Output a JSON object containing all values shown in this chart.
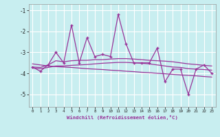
{
  "x": [
    0,
    1,
    2,
    3,
    4,
    5,
    6,
    7,
    8,
    9,
    10,
    11,
    12,
    13,
    14,
    15,
    16,
    17,
    18,
    19,
    20,
    21,
    22,
    23
  ],
  "y_main": [
    -3.7,
    -3.9,
    -3.6,
    -3.0,
    -3.5,
    -1.7,
    -3.5,
    -2.3,
    -3.2,
    -3.1,
    -3.2,
    -1.2,
    -2.6,
    -3.5,
    -3.5,
    -3.5,
    -2.8,
    -4.4,
    -3.8,
    -3.8,
    -5.0,
    -3.8,
    -3.6,
    -4.0
  ],
  "y_smooth1": [
    -3.7,
    -3.72,
    -3.6,
    -3.4,
    -3.45,
    -3.4,
    -3.38,
    -3.38,
    -3.35,
    -3.35,
    -3.32,
    -3.3,
    -3.3,
    -3.32,
    -3.35,
    -3.38,
    -3.4,
    -3.42,
    -3.45,
    -3.5,
    -3.55,
    -3.58,
    -3.62,
    -3.65
  ],
  "y_smooth2": [
    -3.75,
    -3.78,
    -3.72,
    -3.65,
    -3.65,
    -3.62,
    -3.6,
    -3.58,
    -3.55,
    -3.52,
    -3.5,
    -3.48,
    -3.48,
    -3.5,
    -3.52,
    -3.55,
    -3.6,
    -3.65,
    -3.7,
    -3.72,
    -3.78,
    -3.8,
    -3.82,
    -3.85
  ],
  "y_trend": [
    -3.55,
    -3.6,
    -3.65,
    -3.68,
    -3.7,
    -3.72,
    -3.75,
    -3.78,
    -3.8,
    -3.82,
    -3.85,
    -3.87,
    -3.9,
    -3.92,
    -3.95,
    -3.97,
    -4.0,
    -4.02,
    -4.05,
    -4.08,
    -4.1,
    -4.12,
    -4.15,
    -4.18
  ],
  "line_color": "#993399",
  "bg_color": "#c8eef0",
  "grid_color": "#ffffff",
  "xlabel": "Windchill (Refroidissement éolien,°C)",
  "ylim": [
    -5.6,
    -0.7
  ],
  "xlim": [
    -0.5,
    23.5
  ],
  "yticks": [
    -5,
    -4,
    -3,
    -2,
    -1
  ],
  "xticks": [
    0,
    1,
    2,
    3,
    4,
    5,
    6,
    7,
    8,
    9,
    10,
    11,
    12,
    13,
    14,
    15,
    16,
    17,
    18,
    19,
    20,
    21,
    22,
    23
  ]
}
